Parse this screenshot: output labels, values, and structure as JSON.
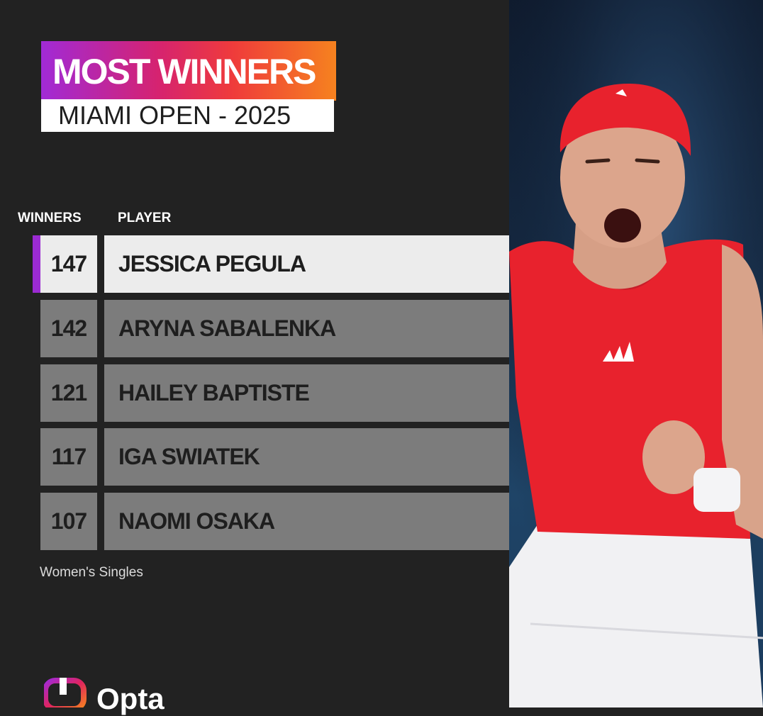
{
  "header": {
    "title": "MOST WINNERS",
    "subtitle": "MIAMI OPEN - 2025"
  },
  "table": {
    "columns": [
      "WINNERS",
      "PLAYER"
    ],
    "rows": [
      {
        "winners": "147",
        "player": "JESSICA PEGULA"
      },
      {
        "winners": "142",
        "player": "ARYNA SABALENKA"
      },
      {
        "winners": "121",
        "player": "HAILEY BAPTISTE"
      },
      {
        "winners": "117",
        "player": "IGA SWIATEK"
      },
      {
        "winners": "107",
        "player": "NAOMI OSAKA"
      }
    ]
  },
  "footnote": "Women's Singles",
  "brand": {
    "name": "Opta"
  },
  "photo": {
    "subject": "tennis player celebrating"
  },
  "colors": {
    "background": "#222222",
    "title_gradient": [
      "#a12ad6",
      "#d6236f",
      "#ef3b3b",
      "#f6821f"
    ],
    "highlight_row": "#ececec",
    "row": "#7c7c7c",
    "accent": "#9b2bd2",
    "shirt": "#e8222d"
  }
}
